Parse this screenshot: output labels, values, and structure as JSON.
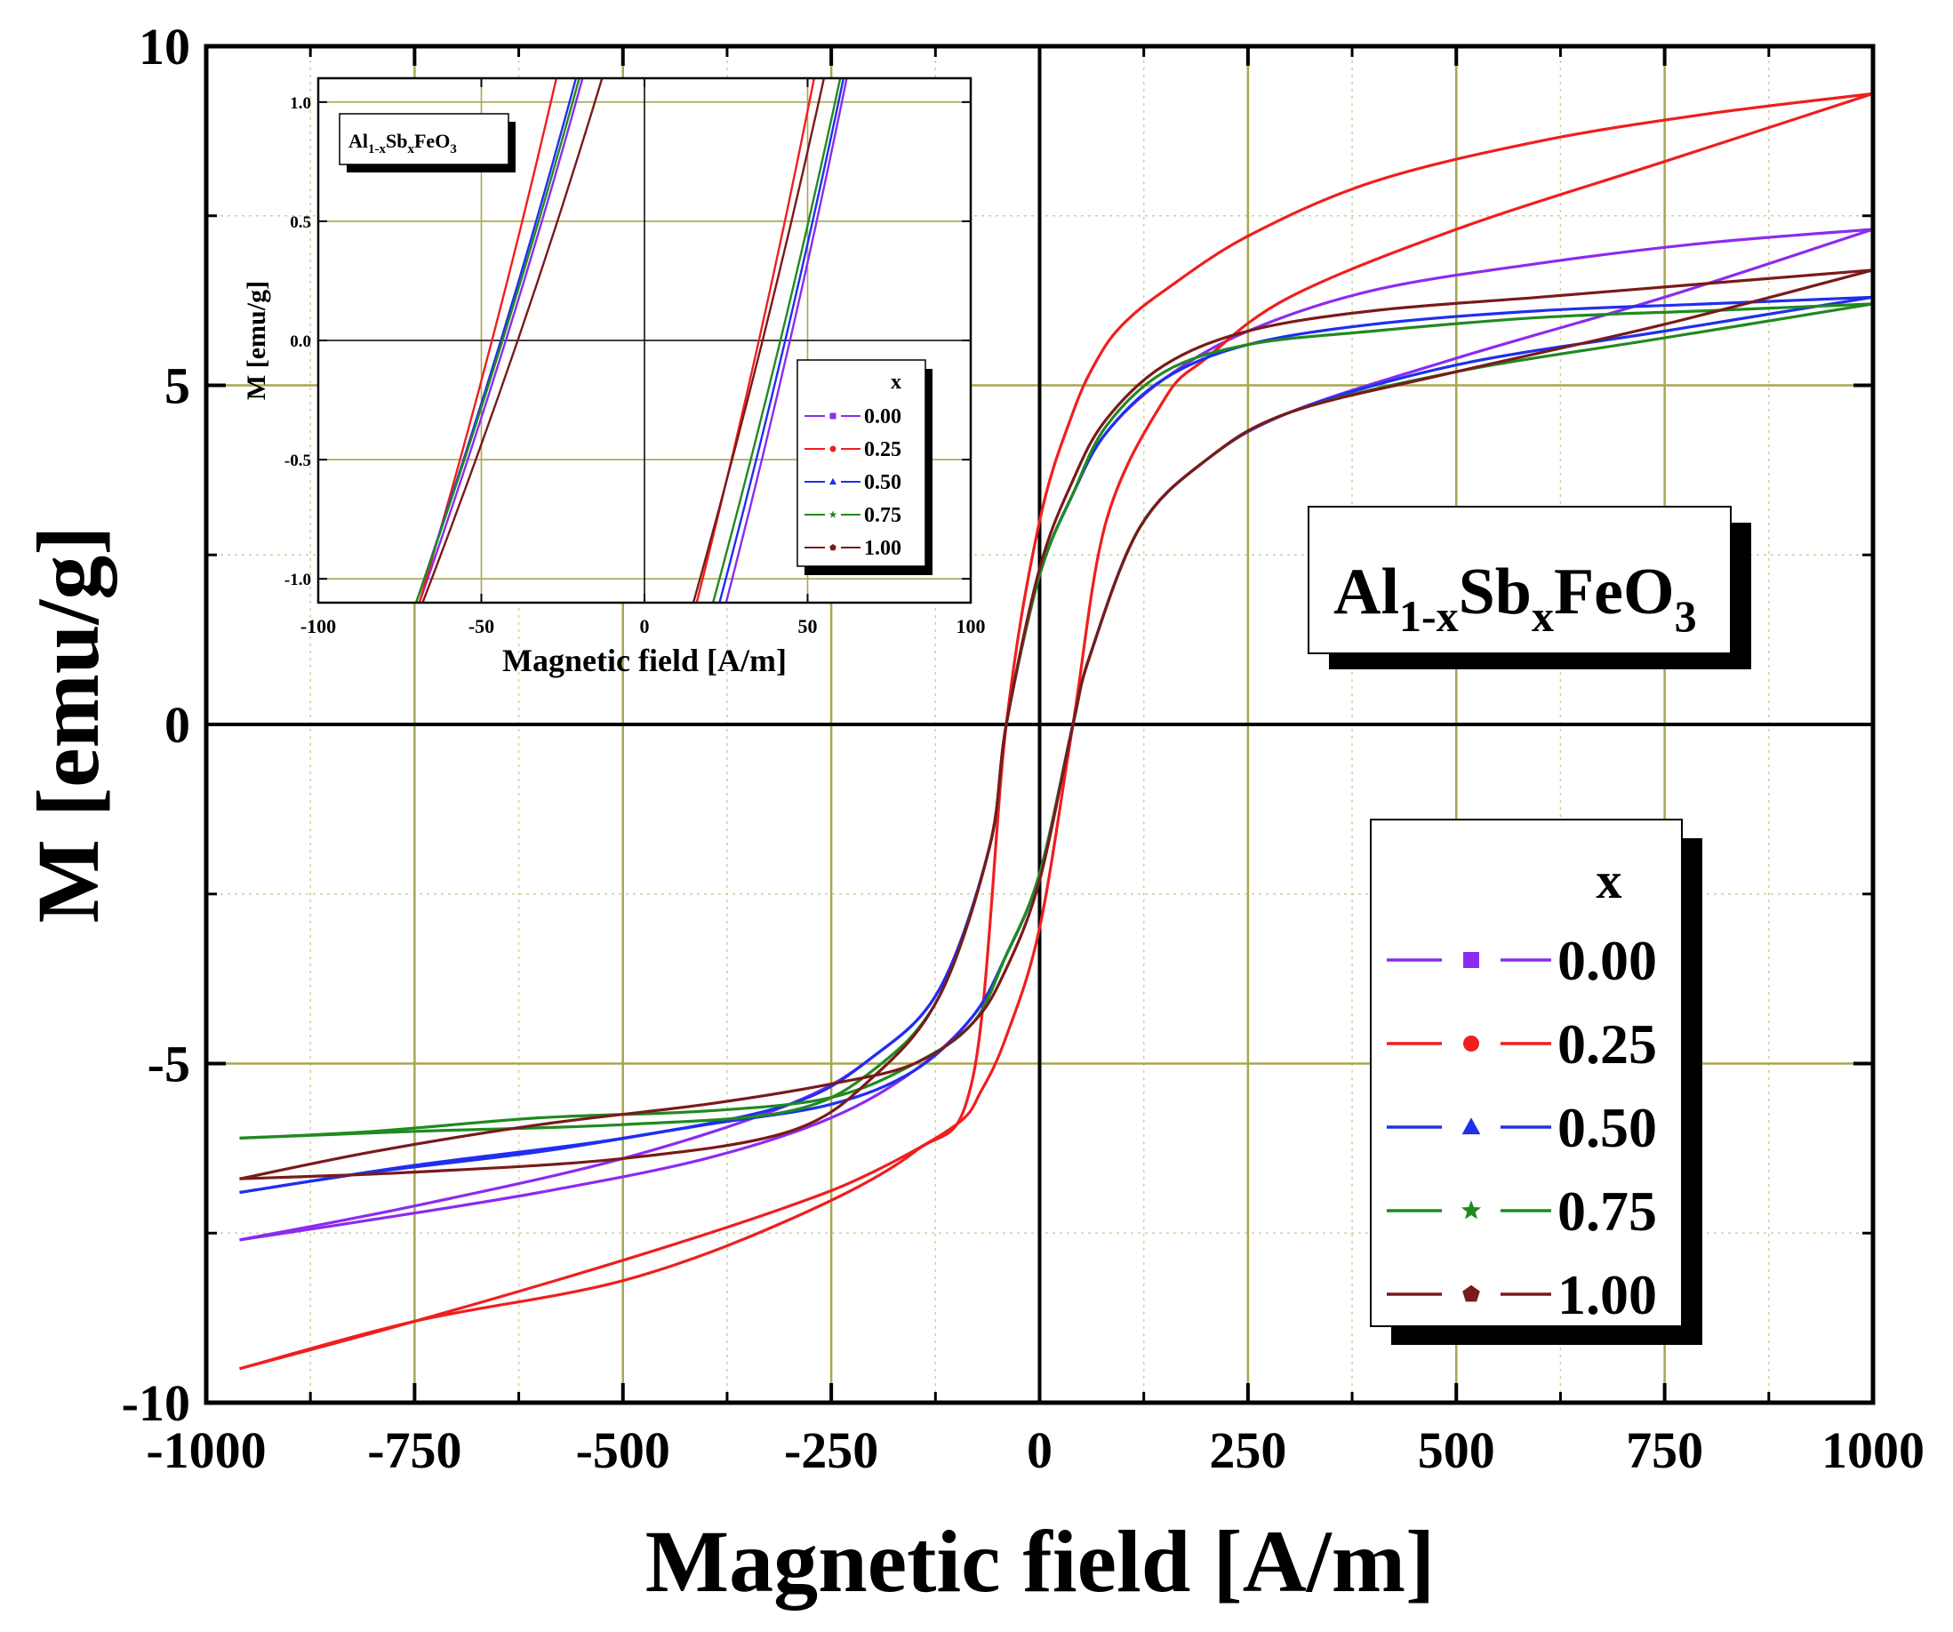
{
  "chart_data": {
    "type": "line",
    "title": "",
    "xlabel": "Magnetic field [A/m]",
    "ylabel": "M [emu/g]",
    "xlim": [
      -1000,
      1000
    ],
    "ylim": [
      -10,
      10
    ],
    "xticks": [
      "-1000",
      "-750",
      "-500",
      "-250",
      "0",
      "250",
      "500",
      "750",
      "1000"
    ],
    "yticks": [
      "-10",
      "-5",
      "0",
      "5",
      "10"
    ],
    "grid": true,
    "compound_label": {
      "base1": "Al",
      "sub1": "1-x",
      "base2": "Sb",
      "sub2": "x",
      "base3": "FeO",
      "sub3": "3"
    },
    "legend": {
      "title": "x",
      "placement": "bottom-right"
    },
    "series": [
      {
        "name": "0.00",
        "color": "#8b2bf0",
        "marker": "square",
        "upper_branch": {
          "x": [
            -960,
            -750,
            -500,
            -300,
            -200,
            -120,
            -60,
            -40,
            0,
            40,
            80,
            150,
            250,
            400,
            600,
            800,
            1000
          ],
          "y": [
            -7.6,
            -7.1,
            -6.4,
            -5.6,
            -4.9,
            -3.9,
            -1.8,
            0.0,
            2.2,
            3.4,
            4.3,
            5.1,
            5.8,
            6.4,
            6.8,
            7.1,
            7.3
          ]
        },
        "lower_branch": {
          "x": [
            1000,
            750,
            500,
            300,
            200,
            120,
            60,
            40,
            0,
            -40,
            -80,
            -150,
            -250,
            -400,
            -600,
            -800,
            -960
          ],
          "y": [
            7.3,
            6.3,
            5.4,
            4.6,
            3.9,
            2.9,
            1.0,
            0.0,
            -2.2,
            -3.4,
            -4.3,
            -5.1,
            -5.8,
            -6.4,
            -6.9,
            -7.3,
            -7.6
          ]
        }
      },
      {
        "name": "0.25",
        "color": "#f01e1e",
        "marker": "circle",
        "upper_branch": {
          "x": [
            -960,
            -750,
            -500,
            -300,
            -150,
            -80,
            -40,
            0,
            40,
            70,
            100,
            150,
            250,
            400,
            600,
            800,
            1000
          ],
          "y": [
            -9.5,
            -8.8,
            -8.2,
            -7.3,
            -6.3,
            -5.2,
            0.0,
            3.0,
            4.6,
            5.4,
            5.9,
            6.4,
            7.2,
            8.0,
            8.6,
            9.0,
            9.3
          ]
        },
        "lower_branch": {
          "x": [
            1000,
            750,
            500,
            300,
            200,
            150,
            80,
            40,
            0,
            -40,
            -70,
            -100,
            -200,
            -300,
            -500,
            -750,
            -960
          ],
          "y": [
            9.3,
            8.3,
            7.3,
            6.3,
            5.4,
            4.8,
            3.0,
            0.0,
            -3.0,
            -4.6,
            -5.4,
            -5.9,
            -6.6,
            -7.1,
            -7.9,
            -8.8,
            -9.5
          ]
        }
      },
      {
        "name": "0.50",
        "color": "#1f2fef",
        "marker": "triangle",
        "upper_branch": {
          "x": [
            -960,
            -750,
            -500,
            -300,
            -200,
            -120,
            -60,
            -40,
            0,
            40,
            80,
            150,
            250,
            400,
            600,
            800,
            1000
          ],
          "y": [
            -6.9,
            -6.5,
            -6.1,
            -5.6,
            -4.9,
            -3.9,
            -1.8,
            0.0,
            2.2,
            3.4,
            4.3,
            5.1,
            5.6,
            5.9,
            6.1,
            6.2,
            6.3
          ]
        },
        "lower_branch": {
          "x": [
            1000,
            750,
            500,
            300,
            200,
            120,
            60,
            40,
            0,
            -40,
            -80,
            -150,
            -250,
            -400,
            -600,
            -800,
            -960
          ],
          "y": [
            6.3,
            5.8,
            5.3,
            4.6,
            3.9,
            2.9,
            1.0,
            0.0,
            -2.2,
            -3.4,
            -4.3,
            -5.1,
            -5.6,
            -5.9,
            -6.3,
            -6.6,
            -6.9
          ]
        }
      },
      {
        "name": "0.75",
        "color": "#208a20",
        "marker": "star",
        "upper_branch": {
          "x": [
            -960,
            -750,
            -500,
            -300,
            -200,
            -120,
            -60,
            -40,
            0,
            40,
            80,
            150,
            250,
            400,
            600,
            800,
            1000
          ],
          "y": [
            -6.1,
            -6.0,
            -5.9,
            -5.7,
            -5.1,
            -4.0,
            -1.8,
            0.0,
            2.2,
            3.4,
            4.4,
            5.2,
            5.6,
            5.8,
            6.0,
            6.1,
            6.2
          ]
        },
        "lower_branch": {
          "x": [
            1000,
            750,
            500,
            300,
            200,
            120,
            60,
            40,
            0,
            -40,
            -80,
            -150,
            -250,
            -400,
            -600,
            -800,
            -960
          ],
          "y": [
            6.2,
            5.7,
            5.2,
            4.6,
            3.9,
            2.9,
            1.0,
            0.0,
            -2.2,
            -3.4,
            -4.4,
            -5.0,
            -5.5,
            -5.7,
            -5.8,
            -6.0,
            -6.1
          ]
        }
      },
      {
        "name": "1.00",
        "color": "#7a1a1a",
        "marker": "pentagon",
        "upper_branch": {
          "x": [
            -960,
            -750,
            -500,
            -300,
            -200,
            -120,
            -60,
            -40,
            0,
            40,
            80,
            150,
            250,
            400,
            600,
            800,
            1000
          ],
          "y": [
            -6.7,
            -6.6,
            -6.4,
            -6.0,
            -5.2,
            -4.0,
            -1.8,
            0.0,
            2.3,
            3.6,
            4.5,
            5.3,
            5.8,
            6.1,
            6.3,
            6.5,
            6.7
          ]
        },
        "lower_branch": {
          "x": [
            1000,
            750,
            500,
            300,
            200,
            120,
            60,
            40,
            0,
            -40,
            -80,
            -150,
            -250,
            -400,
            -600,
            -800,
            -960
          ],
          "y": [
            6.7,
            5.9,
            5.2,
            4.6,
            3.9,
            2.9,
            1.0,
            0.0,
            -2.3,
            -3.6,
            -4.4,
            -5.0,
            -5.3,
            -5.6,
            -5.9,
            -6.3,
            -6.7
          ]
        }
      }
    ],
    "inset": {
      "xlabel": "Magnetic field [A/m]",
      "ylabel": "M [emu/g]",
      "xlim": [
        -100,
        100
      ],
      "ylim": [
        -1.1,
        1.1
      ],
      "xticks": [
        "-100",
        "-50",
        "0",
        "50",
        "100"
      ],
      "yticks": [
        "-1.0",
        "-0.5",
        "0.0",
        "0.5",
        "1.0"
      ],
      "legend": {
        "title": "x",
        "placement": "bottom-right"
      },
      "series": [
        {
          "name": "0.00",
          "color": "#8b2bf0",
          "x_left": [
            -69,
            -19
          ],
          "x_right": [
            25,
            62
          ]
        },
        {
          "name": "0.25",
          "color": "#f01e1e",
          "x_left": [
            -69,
            -27
          ],
          "x_right": [
            16,
            52
          ]
        },
        {
          "name": "0.50",
          "color": "#1f2fef",
          "x_left": [
            -70,
            -21
          ],
          "x_right": [
            23,
            61
          ]
        },
        {
          "name": "0.75",
          "color": "#208a20",
          "x_left": [
            -70,
            -20
          ],
          "x_right": [
            21,
            60
          ]
        },
        {
          "name": "1.00",
          "color": "#7a1a1a",
          "x_left": [
            -68,
            -13
          ],
          "x_right": [
            15,
            55
          ]
        }
      ]
    }
  }
}
